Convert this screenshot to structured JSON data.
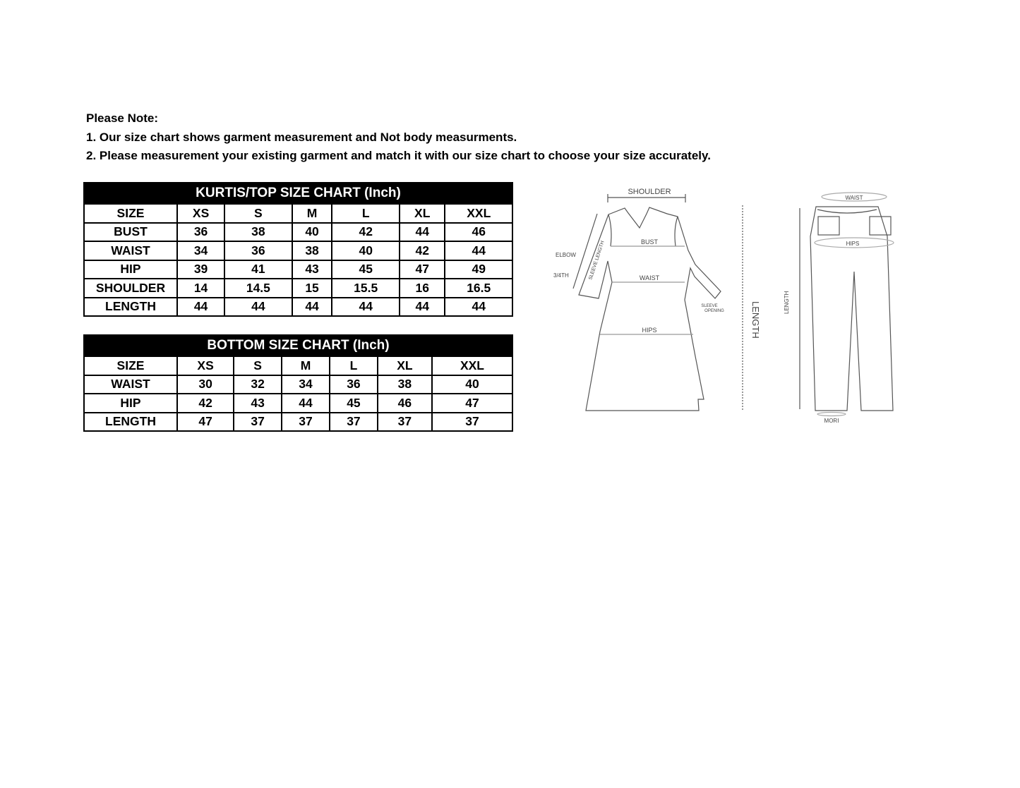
{
  "notes": {
    "heading": "Please Note:",
    "line1": "1. Our size chart shows garment measurement and Not body measurments.",
    "line2": "2. Please measurement your existing garment and match it with our size chart to choose your size accurately."
  },
  "kurtis_table": {
    "title": "KURTIS/TOP SIZE CHART (Inch)",
    "columns": [
      "SIZE",
      "XS",
      "S",
      "M",
      "L",
      "XL",
      "XXL"
    ],
    "rows": [
      [
        "BUST",
        "36",
        "38",
        "40",
        "42",
        "44",
        "46"
      ],
      [
        "WAIST",
        "34",
        "36",
        "38",
        "40",
        "42",
        "44"
      ],
      [
        "HIP",
        "39",
        "41",
        "43",
        "45",
        "47",
        "49"
      ],
      [
        "SHOULDER",
        "14",
        "14.5",
        "15",
        "15.5",
        "16",
        "16.5"
      ],
      [
        "LENGTH",
        "44",
        "44",
        "44",
        "44",
        "44",
        "44"
      ]
    ]
  },
  "bottom_table": {
    "title": "BOTTOM SIZE CHART (Inch)",
    "columns": [
      "SIZE",
      "XS",
      "S",
      "M",
      "L",
      "XL",
      "XXL"
    ],
    "rows": [
      [
        "WAIST",
        "30",
        "32",
        "34",
        "36",
        "38",
        "40"
      ],
      [
        "HIP",
        "42",
        "43",
        "44",
        "45",
        "46",
        "47"
      ],
      [
        "LENGTH",
        "47",
        "37",
        "37",
        "37",
        "37",
        "37"
      ]
    ]
  },
  "diagram": {
    "kurti_labels": {
      "shoulder": "SHOULDER",
      "bust": "BUST",
      "waist": "WAIST",
      "hips": "HIPS",
      "elbow": "ELBOW",
      "three_quarter": "3/4TH",
      "sleeve_length": "SLEEVE LENGTH",
      "sleeve": "SLEEVE",
      "opening": "OPENING",
      "length": "LENGTH"
    },
    "pant_labels": {
      "waist": "WAIST",
      "hips": "HIPS",
      "length": "LENGTH",
      "mori": "MORI"
    }
  }
}
